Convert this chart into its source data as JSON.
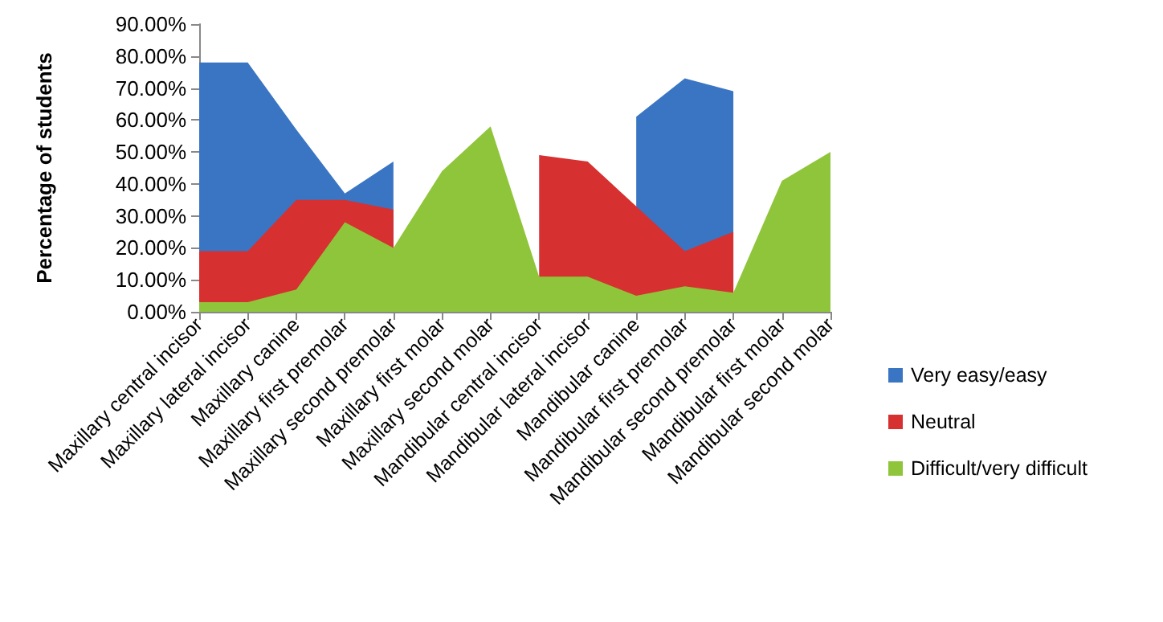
{
  "chart_data": {
    "type": "area",
    "ylabel": "Percentage of students",
    "categories": [
      "Maxillary central incisor",
      "Maxillary lateral incisor",
      "Maxillary canine",
      "Maxillary first premolar",
      "Maxillary second premolar",
      "Maxillary first molar",
      "Maxillary second molar",
      "Mandibular central incisor",
      "Mandibular lateral incisor",
      "Mandibular canine",
      "Mandibular first premolar",
      "Mandibular second premolar",
      "Mandibular first molar",
      "Mandibular second molar"
    ],
    "series": [
      {
        "name": "Very easy/easy",
        "color": "#3a75c4",
        "values": [
          78,
          78,
          57,
          37,
          47,
          null,
          null,
          null,
          null,
          61,
          73,
          69,
          null,
          null
        ]
      },
      {
        "name": "Neutral",
        "color": "#d73030",
        "values": [
          19,
          19,
          35,
          35,
          32,
          null,
          null,
          49,
          47,
          33,
          19,
          25,
          null,
          null
        ]
      },
      {
        "name": "Difficult/very difficult",
        "color": "#8fc53a",
        "values": [
          3,
          3,
          7,
          28,
          20,
          44,
          58,
          11,
          11,
          5,
          8,
          6,
          41,
          50
        ]
      }
    ],
    "ylim": [
      0,
      90
    ],
    "yticks": [
      {
        "value": 0,
        "label": "0.00%"
      },
      {
        "value": 10,
        "label": "10.00%"
      },
      {
        "value": 20,
        "label": "20.00%"
      },
      {
        "value": 30,
        "label": "30.00%"
      },
      {
        "value": 40,
        "label": "40.00%"
      },
      {
        "value": 50,
        "label": "50.00%"
      },
      {
        "value": 60,
        "label": "60.00%"
      },
      {
        "value": 70,
        "label": "70.00%"
      },
      {
        "value": 80,
        "label": "80.00%"
      },
      {
        "value": 90,
        "label": "90.00%"
      }
    ],
    "grid": false,
    "legend": "right"
  }
}
